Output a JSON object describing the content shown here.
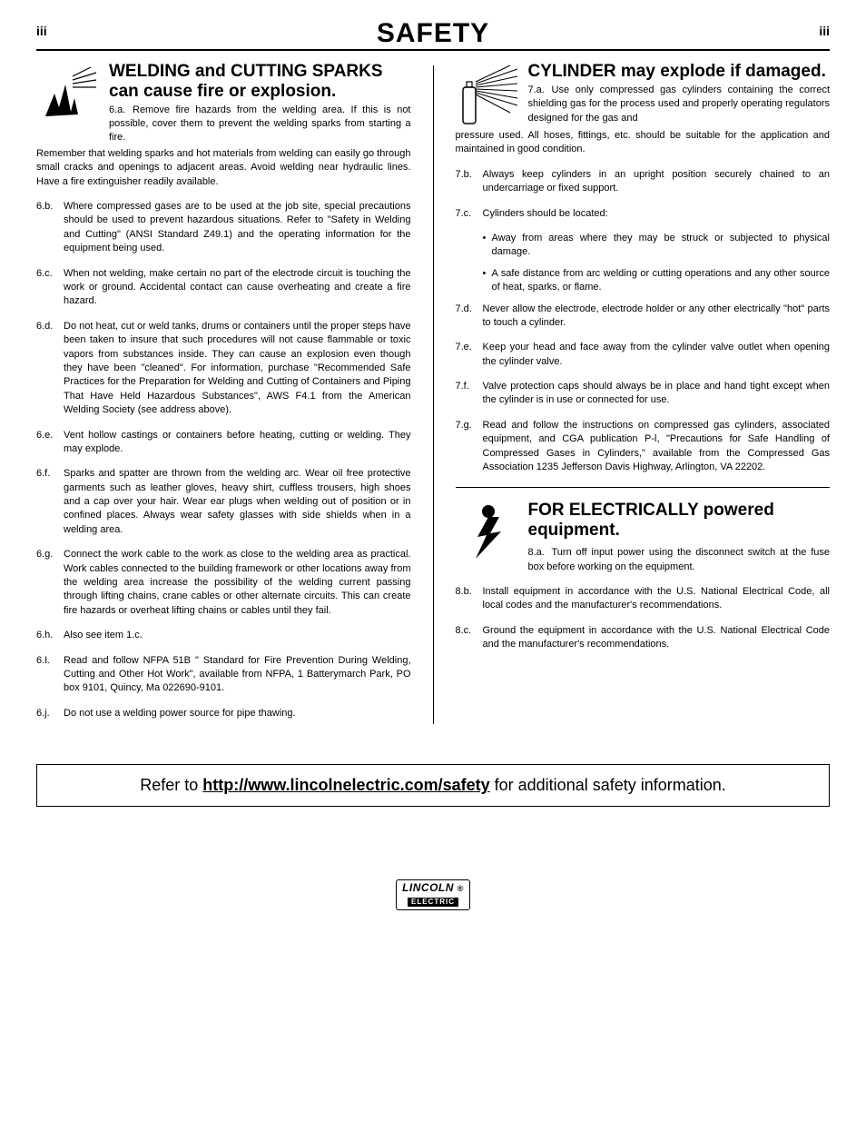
{
  "page": {
    "number_left": "iii",
    "number_right": "iii",
    "title": "SAFETY"
  },
  "left": {
    "heading": "WELDING and CUTTING SPARKS can cause fire or explosion.",
    "first_num": "6.a.",
    "first_text": "Remove fire hazards from the welding area. If this is not possible, cover them to prevent the welding sparks from starting a fire.",
    "continuation": "Remember that welding sparks and hot materials from welding can easily go through small cracks and openings to adjacent areas. Avoid welding near hydraulic lines. Have a fire extinguisher readily available.",
    "items": [
      {
        "num": "6.b.",
        "txt": "Where compressed gases are to be used at the job site, special precautions should be used to prevent hazardous situations. Refer to \"Safety in Welding and Cutting\" (ANSI Standard Z49.1) and the operating information for the equipment being used."
      },
      {
        "num": "6.c.",
        "txt": "When not welding, make certain no part of the electrode circuit is touching the work or ground. Accidental contact can cause overheating and create a fire hazard."
      },
      {
        "num": "6.d.",
        "txt": "Do not heat, cut or weld tanks, drums or containers until the proper steps have been taken to insure that such procedures will not cause flammable or toxic vapors from substances inside. They can cause an explosion even though they have been \"cleaned\". For information, purchase \"Recommended Safe Practices for the Preparation for Welding and Cutting of Containers and Piping That Have Held Hazardous Substances\", AWS F4.1 from the American Welding Society (see address above)."
      },
      {
        "num": "6.e.",
        "txt": "Vent hollow castings or containers before heating, cutting or welding. They may explode."
      },
      {
        "num": "6.f.",
        "txt": "Sparks and spatter are thrown from the welding arc. Wear oil free protective garments such as leather gloves, heavy shirt, cuffless trousers, high shoes and a cap over your hair. Wear ear plugs when welding out of position or in confined places. Always wear safety glasses with side shields when in a welding area."
      },
      {
        "num": "6.g.",
        "txt": "Connect the work cable to the work as close to the welding area as practical. Work cables connected to the building framework or other locations away from the welding area increase the possibility of the welding current passing through lifting chains, crane cables or other alternate circuits. This can create fire hazards or overheat lifting chains or cables until they fail."
      },
      {
        "num": "6.h.",
        "txt": "Also see item 1.c."
      },
      {
        "num": "6.I.",
        "txt": "Read and follow NFPA 51B \" Standard for Fire Prevention During Welding, Cutting and Other Hot Work\", available from NFPA, 1 Batterymarch Park, PO box 9101, Quincy, Ma 022690-9101."
      },
      {
        "num": "6.j.",
        "txt": "Do not use a welding power source for pipe thawing."
      }
    ]
  },
  "right_a": {
    "heading": "CYLINDER may explode if damaged.",
    "first_num": "7.a.",
    "first_text": "Use only compressed gas cylinders containing the correct shielding gas for the process used and properly operating regulators designed for the gas and",
    "continuation": "pressure used. All hoses, fittings, etc. should be suitable for the application and maintained in good condition.",
    "items": [
      {
        "num": "7.b.",
        "txt": "Always keep cylinders in an upright position securely chained to an undercarriage or fixed support."
      },
      {
        "num": "7.c.",
        "txt": "Cylinders should be located:"
      },
      {
        "num": "7.d.",
        "txt": "Never allow the electrode, electrode holder or any other electrically \"hot\" parts to touch a cylinder."
      },
      {
        "num": "7.e.",
        "txt": "Keep your head and face away from the cylinder valve outlet when opening the cylinder valve."
      },
      {
        "num": "7.f.",
        "txt": "Valve protection caps should always be in place and hand tight except when the cylinder is in use or connected for use."
      },
      {
        "num": "7.g.",
        "txt": "Read and follow the instructions on compressed gas cylinders, associated equipment, and CGA publication P-l, \"Precautions for Safe Handling of Compressed Gases in Cylinders,\" available from the Compressed Gas Association 1235 Jefferson Davis Highway, Arlington, VA 22202."
      }
    ],
    "sub_items_7c": [
      {
        "txt": "Away from areas where they may be struck or subjected to physical damage."
      },
      {
        "txt": "A safe distance from arc welding or cutting operations and any other source of heat, sparks, or flame."
      }
    ]
  },
  "right_b": {
    "heading": "FOR ELECTRICALLY powered equipment.",
    "first_num": "8.a.",
    "first_text": "Turn off input power using the disconnect switch at the fuse box before working on the equipment.",
    "items": [
      {
        "num": "8.b.",
        "txt": "Install equipment in accordance with the U.S. National Electrical Code, all local codes and the manufacturer's recommendations."
      },
      {
        "num": "8.c.",
        "txt": "Ground the equipment in accordance with the U.S. National Electrical Code and the manufacturer's recommendations."
      }
    ]
  },
  "footer": {
    "prefix": "Refer to ",
    "link": "http://www.lincolnelectric.com/safety",
    "suffix": " for additional safety information."
  },
  "logo": {
    "line1": "LINCOLN",
    "line2": "ELECTRIC"
  }
}
